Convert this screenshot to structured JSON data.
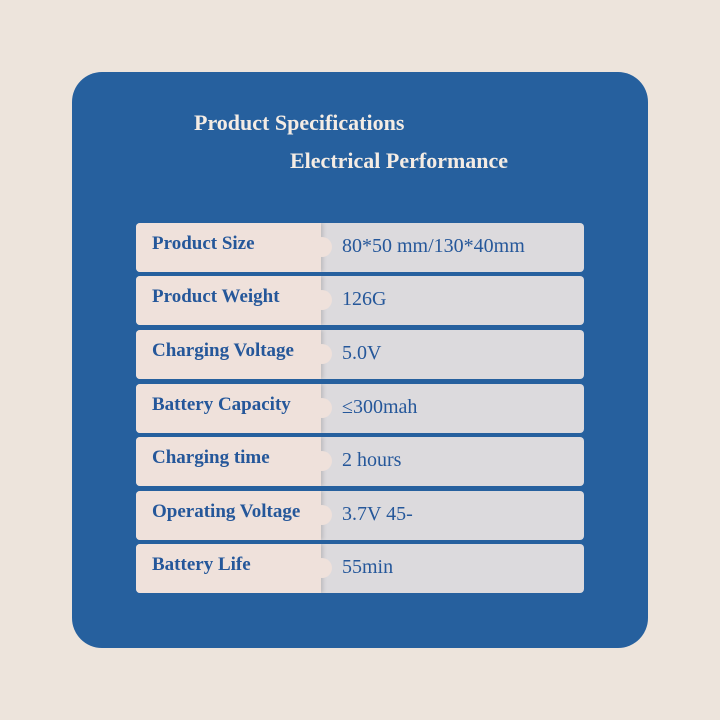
{
  "title": "Product Specifications",
  "subtitle": "Electrical Performance",
  "specs": [
    {
      "label": "Product Size",
      "value": "80*50 mm/130*40mm"
    },
    {
      "label": "Product Weight",
      "value": "126G"
    },
    {
      "label": "Charging Voltage",
      "value": "5.0V"
    },
    {
      "label": "Battery Capacity",
      "value": "≤300mah"
    },
    {
      "label": "Charging time",
      "value": "2 hours"
    },
    {
      "label": "Operating Voltage",
      "value": "3.7V 45-"
    },
    {
      "label": "Battery Life",
      "value": "55min"
    }
  ]
}
